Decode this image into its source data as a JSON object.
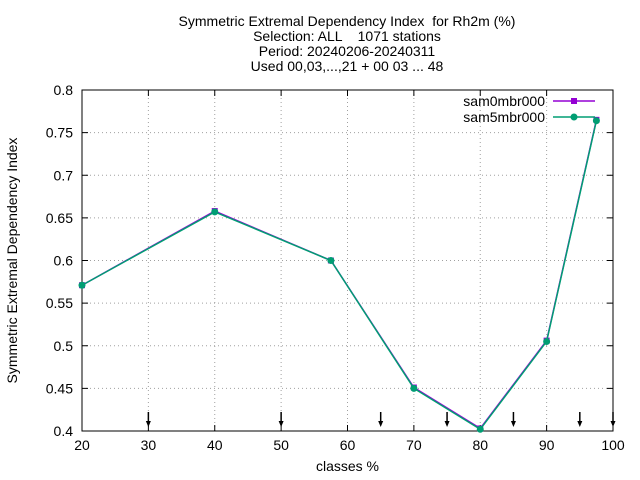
{
  "chart_data": {
    "type": "line",
    "title_lines": [
      "Symmetric Extremal Dependency Index  for Rh2m (%)",
      "Selection: ALL    1071 stations",
      "Period: 20240206-20240311",
      "Used 00,03,...,21 + 00 03 ... 48"
    ],
    "xlabel": "classes %",
    "ylabel": "Symmetric Extremal Dependency Index",
    "xlim": [
      20,
      100
    ],
    "ylim": [
      0.4,
      0.8
    ],
    "xticks": [
      20,
      30,
      40,
      50,
      60,
      70,
      80,
      90,
      100
    ],
    "yticks": [
      0.4,
      0.45,
      0.5,
      0.55,
      0.6,
      0.65,
      0.7,
      0.75,
      0.8
    ],
    "grid": true,
    "legend_position": "top-right",
    "markers_x": [
      30,
      50,
      65,
      75,
      85,
      95,
      100
    ],
    "series": [
      {
        "name": "sam0mbr000",
        "color": "#9400d3",
        "x": [
          20,
          40,
          57.5,
          70,
          80,
          90,
          97.5
        ],
        "y": [
          0.571,
          0.658,
          0.6,
          0.451,
          0.403,
          0.506,
          0.765
        ]
      },
      {
        "name": "sam5mbr000",
        "color": "#009e73",
        "x": [
          20,
          40,
          57.5,
          70,
          80,
          90,
          97.5
        ],
        "y": [
          0.571,
          0.657,
          0.6,
          0.45,
          0.402,
          0.505,
          0.764
        ]
      }
    ]
  }
}
